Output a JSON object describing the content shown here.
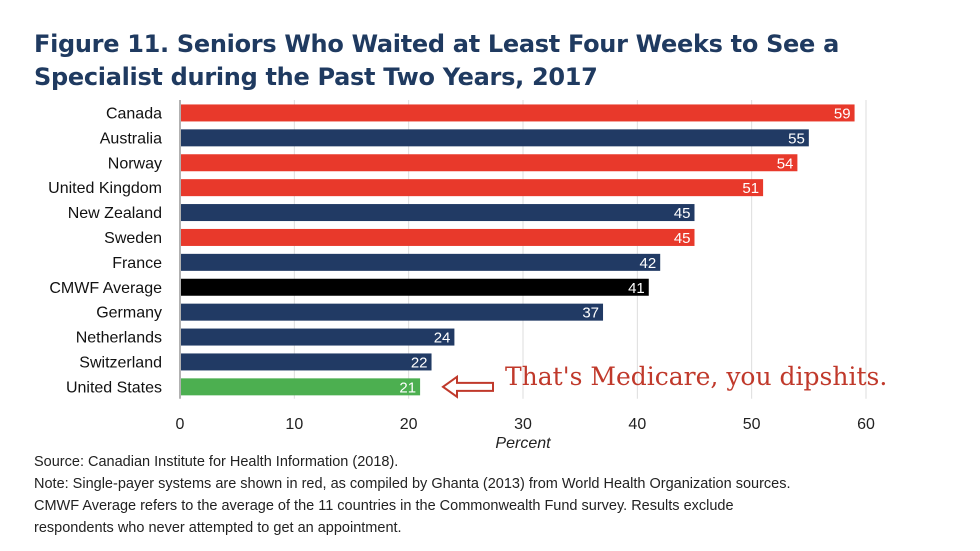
{
  "chart_data": {
    "type": "bar",
    "orientation": "horizontal",
    "title": "Figure 11. Seniors Who Waited at Least Four Weeks to See a Specialist during the Past Two Years, 2017",
    "title_lines": [
      "Figure 11. Seniors Who Waited at Least Four Weeks to See a",
      "Specialist during the Past Two Years, 2017"
    ],
    "categories": [
      "Canada",
      "Australia",
      "Norway",
      "United Kingdom",
      "New Zealand",
      "Sweden",
      "France",
      "CMWF Average",
      "Germany",
      "Netherlands",
      "Switzerland",
      "United States"
    ],
    "values": [
      59,
      55,
      54,
      51,
      45,
      45,
      42,
      41,
      37,
      24,
      22,
      21
    ],
    "bar_colors": [
      "#e8392b",
      "#213a64",
      "#e8392b",
      "#e8392b",
      "#213a64",
      "#e8392b",
      "#213a64",
      "#000000",
      "#213a64",
      "#213a64",
      "#213a64",
      "#4caf50"
    ],
    "xlabel": "Percent",
    "ylabel": "",
    "xlim": [
      0,
      60
    ],
    "xticks": [
      0,
      10,
      20,
      30,
      40,
      50,
      60
    ],
    "grid": true,
    "legend": "none",
    "annotation": "That's Medicare, you dipshits.",
    "annotation_color": "#c0392b"
  },
  "notes": [
    "Source: Canadian Institute for Health Information (2018).",
    "Note: Single-payer systems are shown in red, as compiled by Ghanta (2013) from World Health Organization sources.",
    "CMWF Average refers to the average of the 11 countries in the Commonwealth Fund survey. Results exclude",
    "respondents who never attempted to get an appointment."
  ]
}
